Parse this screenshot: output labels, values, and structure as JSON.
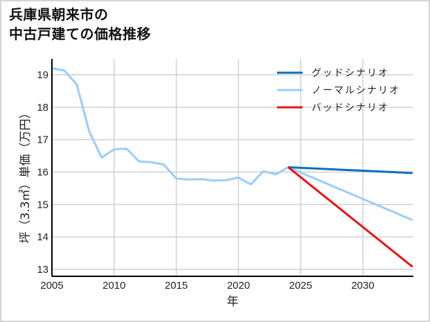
{
  "title": {
    "line1": "兵庫県朝来市の",
    "line2": "中古戸建ての価格推移"
  },
  "chart_data": {
    "type": "line",
    "title": "兵庫県朝来市の中古戸建ての価格推移",
    "xlabel": "年",
    "ylabel": "坪（3.3㎡）単価（万円）",
    "xlim": [
      2005,
      2034
    ],
    "ylim": [
      12.8,
      19.4
    ],
    "xticks": [
      2005,
      2010,
      2015,
      2020,
      2025,
      2030
    ],
    "yticks": [
      13,
      14,
      15,
      16,
      17,
      18,
      19
    ],
    "grid": true,
    "legend_position": "upper right",
    "series": [
      {
        "name": "グッドシナリオ",
        "color": "#0a6ebd",
        "x": [
          2024,
          2034
        ],
        "values": [
          16.15,
          15.97
        ]
      },
      {
        "name": "ノーマルシナリオ",
        "color": "#99ccff",
        "x": [
          2005,
          2006,
          2007,
          2008,
          2009,
          2010,
          2011,
          2012,
          2013,
          2014,
          2015,
          2016,
          2017,
          2018,
          2019,
          2020,
          2021,
          2022,
          2023,
          2024,
          2034
        ],
        "values": [
          19.2,
          19.13,
          18.7,
          17.25,
          16.45,
          16.7,
          16.72,
          16.33,
          16.3,
          16.23,
          15.8,
          15.77,
          15.78,
          15.74,
          15.75,
          15.83,
          15.62,
          16.03,
          15.93,
          16.15,
          14.52
        ]
      },
      {
        "name": "バッドシナリオ",
        "color": "#ee1111",
        "x": [
          2024,
          2034
        ],
        "values": [
          16.15,
          13.08
        ]
      }
    ]
  }
}
